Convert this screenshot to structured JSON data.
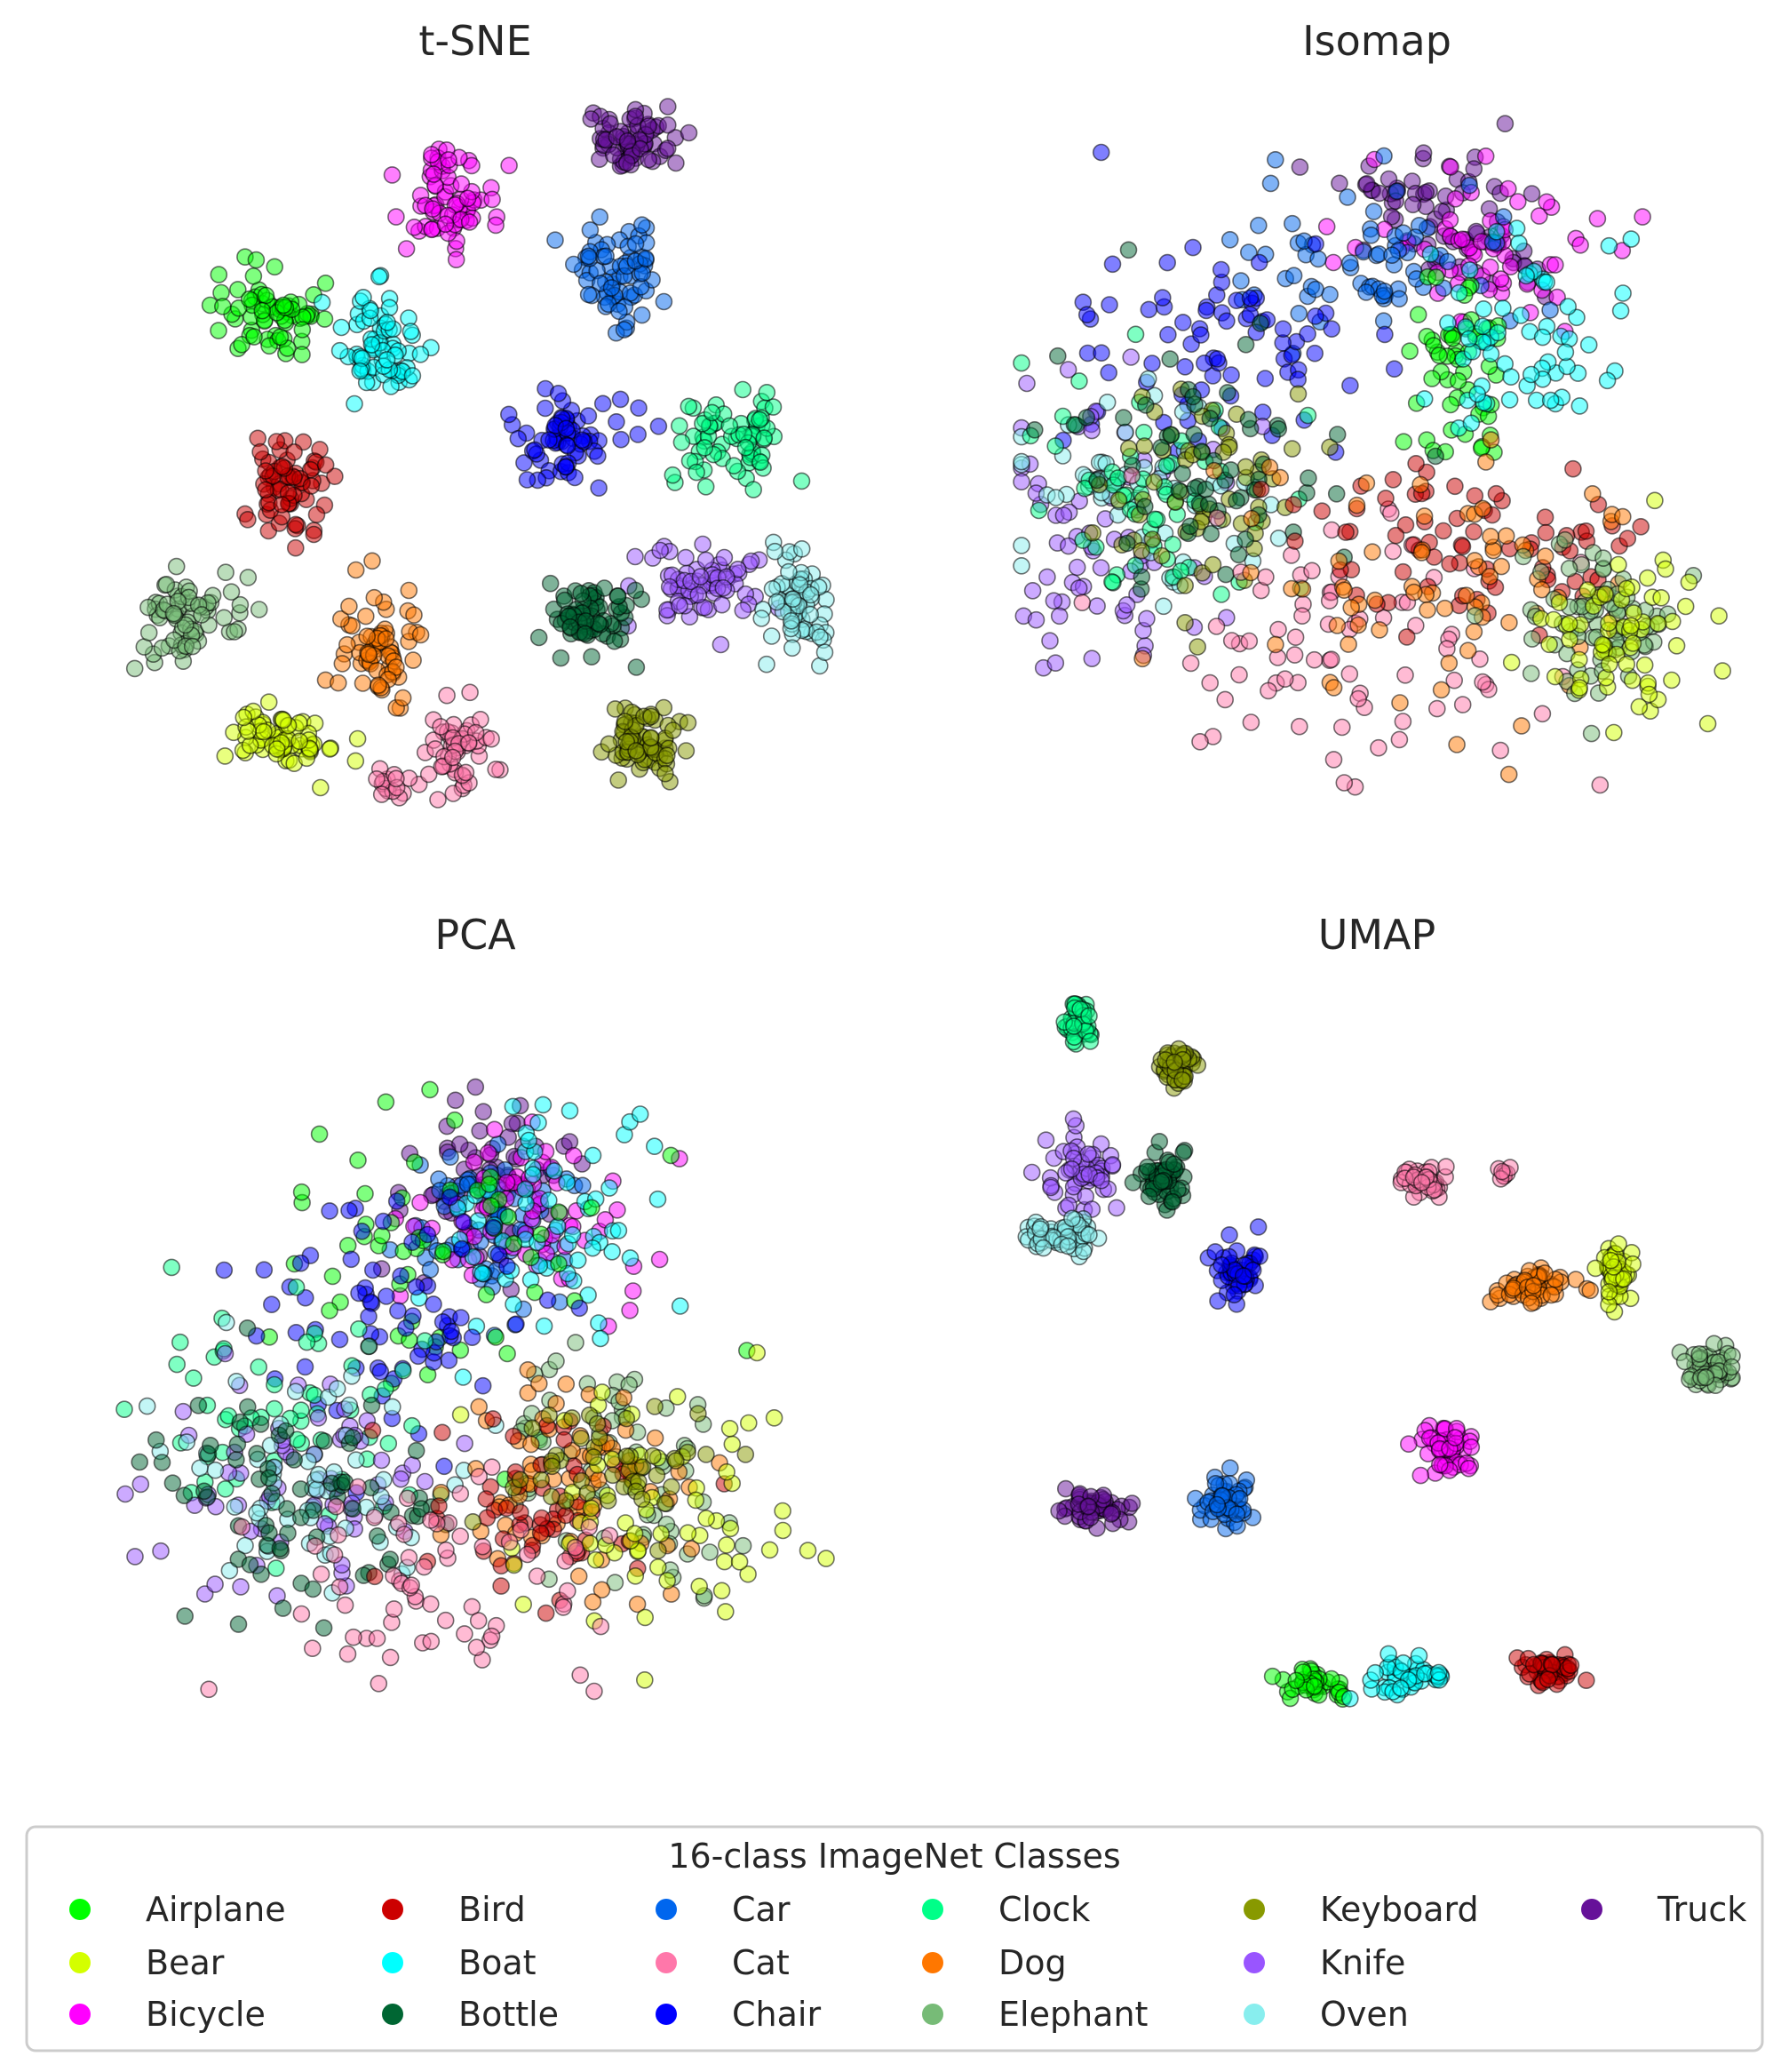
{
  "chart_data": [
    {
      "type": "scatter",
      "title": "t-SNE",
      "xlim": [
        0,
        100
      ],
      "ylim": [
        0,
        100
      ],
      "grid": false,
      "axes_visible": false,
      "clusters": [
        {
          "cls": "Truck",
          "cx": 72,
          "cy": 95,
          "sx": 3.5,
          "sy": 2.5,
          "n": 70
        },
        {
          "cls": "Bicycle",
          "cx": 46,
          "cy": 87,
          "sx": 3.0,
          "sy": 3.5,
          "n": 70
        },
        {
          "cls": "Car",
          "cx": 70,
          "cy": 76,
          "sx": 3.5,
          "sy": 3.5,
          "n": 70
        },
        {
          "cls": "Airplane",
          "cx": 21,
          "cy": 70,
          "sx": 3.5,
          "sy": 3.0,
          "n": 70
        },
        {
          "cls": "Boat",
          "cx": 36,
          "cy": 65,
          "sx": 3.0,
          "sy": 4.0,
          "n": 70
        },
        {
          "cls": "Chair",
          "cx": 63,
          "cy": 52,
          "sx": 4.5,
          "sy": 3.5,
          "n": 70
        },
        {
          "cls": "Clock",
          "cx": 87,
          "cy": 52,
          "sx": 4.0,
          "sy": 3.0,
          "n": 70
        },
        {
          "cls": "Bird",
          "cx": 23,
          "cy": 46,
          "sx": 3.0,
          "sy": 4.0,
          "n": 70
        },
        {
          "cls": "Knife",
          "cx": 82,
          "cy": 31,
          "sx": 4.5,
          "sy": 3.0,
          "n": 70
        },
        {
          "cls": "Oven",
          "cx": 96,
          "cy": 28,
          "sx": 2.5,
          "sy": 3.5,
          "n": 70
        },
        {
          "cls": "Elephant",
          "cx": 9,
          "cy": 26,
          "sx": 3.5,
          "sy": 3.0,
          "n": 70
        },
        {
          "cls": "Bottle",
          "cx": 66,
          "cy": 26,
          "sx": 3.0,
          "sy": 3.0,
          "n": 70
        },
        {
          "cls": "Dog",
          "cx": 36,
          "cy": 22,
          "sx": 3.0,
          "sy": 4.0,
          "n": 70
        },
        {
          "cls": "Bear",
          "cx": 22,
          "cy": 9,
          "sx": 3.5,
          "sy": 2.5,
          "n": 70
        },
        {
          "cls": "Cat",
          "cx": 48,
          "cy": 7,
          "sx": 2.5,
          "sy": 3.0,
          "n": 55
        },
        {
          "cls": "Cat",
          "cx": 38,
          "cy": 2,
          "sx": 1.2,
          "sy": 1.0,
          "n": 15
        },
        {
          "cls": "Keyboard",
          "cx": 74,
          "cy": 8,
          "sx": 3.0,
          "sy": 2.5,
          "n": 70
        }
      ]
    },
    {
      "type": "scatter",
      "title": "Isomap",
      "xlim": [
        0,
        100
      ],
      "ylim": [
        0,
        100
      ],
      "grid": false,
      "axes_visible": false,
      "clusters": [
        {
          "cls": "Truck",
          "cx": 58,
          "cy": 87,
          "sx": 6,
          "sy": 4,
          "n": 45
        },
        {
          "cls": "Truck",
          "cx": 65,
          "cy": 79,
          "sx": 5,
          "sy": 3,
          "n": 30
        },
        {
          "cls": "Bicycle",
          "cx": 66,
          "cy": 80,
          "sx": 10,
          "sy": 6,
          "n": 60
        },
        {
          "cls": "Car",
          "cx": 48,
          "cy": 78,
          "sx": 10,
          "sy": 6,
          "n": 70
        },
        {
          "cls": "Airplane",
          "cx": 62,
          "cy": 62,
          "sx": 3,
          "sy": 8,
          "n": 55
        },
        {
          "cls": "Boat",
          "cx": 70,
          "cy": 65,
          "sx": 8,
          "sy": 7,
          "n": 65
        },
        {
          "cls": "Chair",
          "cx": 30,
          "cy": 64,
          "sx": 12,
          "sy": 9,
          "n": 80
        },
        {
          "cls": "Knife",
          "cx": 12,
          "cy": 39,
          "sx": 9,
          "sy": 9,
          "n": 75
        },
        {
          "cls": "Oven",
          "cx": 15,
          "cy": 42,
          "sx": 9,
          "sy": 8,
          "n": 60
        },
        {
          "cls": "Clock",
          "cx": 18,
          "cy": 45,
          "sx": 9,
          "sy": 8,
          "n": 55
        },
        {
          "cls": "Keyboard",
          "cx": 25,
          "cy": 45,
          "sx": 8,
          "sy": 8,
          "n": 60
        },
        {
          "cls": "Bottle",
          "cx": 27,
          "cy": 48,
          "sx": 10,
          "sy": 9,
          "n": 60
        },
        {
          "cls": "Cat",
          "cx": 45,
          "cy": 22,
          "sx": 14,
          "sy": 10,
          "n": 80
        },
        {
          "cls": "Bird",
          "cx": 57,
          "cy": 37,
          "sx": 10,
          "sy": 8,
          "n": 55
        },
        {
          "cls": "Bird",
          "cx": 80,
          "cy": 35,
          "sx": 5,
          "sy": 4,
          "n": 25
        },
        {
          "cls": "Dog",
          "cx": 62,
          "cy": 30,
          "sx": 13,
          "sy": 10,
          "n": 75
        },
        {
          "cls": "Elephant",
          "cx": 82,
          "cy": 25,
          "sx": 6,
          "sy": 5,
          "n": 75
        },
        {
          "cls": "Bear",
          "cx": 85,
          "cy": 23,
          "sx": 6,
          "sy": 6,
          "n": 65
        }
      ]
    },
    {
      "type": "scatter",
      "title": "PCA",
      "xlim": [
        0,
        100
      ],
      "ylim": [
        0,
        100
      ],
      "grid": false,
      "axes_visible": false,
      "clusters": [
        {
          "cls": "Truck",
          "cx": 53,
          "cy": 74,
          "sx": 6,
          "sy": 6,
          "n": 70
        },
        {
          "cls": "Car",
          "cx": 52,
          "cy": 68,
          "sx": 6,
          "sy": 5,
          "n": 70
        },
        {
          "cls": "Bicycle",
          "cx": 57,
          "cy": 70,
          "sx": 8,
          "sy": 7,
          "n": 65
        },
        {
          "cls": "Boat",
          "cx": 60,
          "cy": 68,
          "sx": 9,
          "sy": 9,
          "n": 65
        },
        {
          "cls": "Airplane",
          "cx": 48,
          "cy": 66,
          "sx": 12,
          "sy": 12,
          "n": 60
        },
        {
          "cls": "Chair",
          "cx": 40,
          "cy": 55,
          "sx": 11,
          "sy": 8,
          "n": 75
        },
        {
          "cls": "Clock",
          "cx": 22,
          "cy": 42,
          "sx": 10,
          "sy": 8,
          "n": 60
        },
        {
          "cls": "Knife",
          "cx": 25,
          "cy": 33,
          "sx": 10,
          "sy": 8,
          "n": 70
        },
        {
          "cls": "Oven",
          "cx": 30,
          "cy": 32,
          "sx": 10,
          "sy": 7,
          "n": 60
        },
        {
          "cls": "Bottle",
          "cx": 25,
          "cy": 30,
          "sx": 11,
          "sy": 9,
          "n": 70
        },
        {
          "cls": "Elephant",
          "cx": 70,
          "cy": 33,
          "sx": 10,
          "sy": 8,
          "n": 70
        },
        {
          "cls": "Dog",
          "cx": 62,
          "cy": 30,
          "sx": 10,
          "sy": 7,
          "n": 70
        },
        {
          "cls": "Bird",
          "cx": 60,
          "cy": 28,
          "sx": 9,
          "sy": 7,
          "n": 60
        },
        {
          "cls": "Bear",
          "cx": 76,
          "cy": 28,
          "sx": 10,
          "sy": 9,
          "n": 65
        },
        {
          "cls": "Cat",
          "cx": 48,
          "cy": 16,
          "sx": 12,
          "sy": 8,
          "n": 70
        },
        {
          "cls": "Keyboard",
          "cx": 70,
          "cy": 35,
          "sx": 8,
          "sy": 6,
          "n": 45
        }
      ]
    },
    {
      "type": "scatter",
      "title": "UMAP",
      "xlim": [
        0,
        100
      ],
      "ylim": [
        0,
        100
      ],
      "grid": false,
      "axes_visible": false,
      "clusters": [
        {
          "cls": "Clock",
          "cx": 8,
          "cy": 97,
          "sx": 1.2,
          "sy": 1.8,
          "n": 40
        },
        {
          "cls": "Keyboard",
          "cx": 22,
          "cy": 91,
          "sx": 1.2,
          "sy": 1.5,
          "n": 45
        },
        {
          "cls": "Knife",
          "cx": 8,
          "cy": 76,
          "sx": 2.5,
          "sy": 3.0,
          "n": 55
        },
        {
          "cls": "Oven",
          "cx": 6,
          "cy": 67,
          "sx": 3.0,
          "sy": 1.2,
          "n": 55
        },
        {
          "cls": "Bottle",
          "cx": 20,
          "cy": 75,
          "sx": 1.8,
          "sy": 2.2,
          "n": 55
        },
        {
          "cls": "Chair",
          "cx": 30,
          "cy": 62,
          "sx": 2.0,
          "sy": 2.0,
          "n": 50
        },
        {
          "cls": "Cat",
          "cx": 57,
          "cy": 75,
          "sx": 1.8,
          "sy": 1.2,
          "n": 35
        },
        {
          "cls": "Cat",
          "cx": 68,
          "cy": 76,
          "sx": 0.5,
          "sy": 0.5,
          "n": 8
        },
        {
          "cls": "Dog",
          "cx": 72,
          "cy": 60,
          "sx": 3.0,
          "sy": 1.2,
          "n": 55
        },
        {
          "cls": "Bear",
          "cx": 84,
          "cy": 62,
          "sx": 1.2,
          "sy": 2.5,
          "n": 50
        },
        {
          "cls": "Elephant",
          "cx": 97,
          "cy": 48,
          "sx": 2.0,
          "sy": 1.5,
          "n": 55
        },
        {
          "cls": "Bicycle",
          "cx": 60,
          "cy": 37,
          "sx": 2.0,
          "sy": 1.5,
          "n": 50
        },
        {
          "cls": "Truck",
          "cx": 10,
          "cy": 28,
          "sx": 2.5,
          "sy": 1.0,
          "n": 55
        },
        {
          "cls": "Car",
          "cx": 29,
          "cy": 29,
          "sx": 1.8,
          "sy": 2.0,
          "n": 50
        },
        {
          "cls": "Airplane",
          "cx": 40,
          "cy": 3,
          "sx": 2.5,
          "sy": 1.0,
          "n": 45
        },
        {
          "cls": "Boat",
          "cx": 54,
          "cy": 4,
          "sx": 3.5,
          "sy": 1.5,
          "n": 45
        },
        {
          "cls": "Bird",
          "cx": 74,
          "cy": 5,
          "sx": 2.0,
          "sy": 1.0,
          "n": 50
        }
      ]
    }
  ],
  "legend": {
    "title": "16-class ImageNet Classes",
    "placement": "bottom-center",
    "items": [
      {
        "label": "Airplane",
        "color": "#00ff00"
      },
      {
        "label": "Bear",
        "color": "#d4ff00"
      },
      {
        "label": "Bicycle",
        "color": "#ff00ff"
      },
      {
        "label": "Bird",
        "color": "#cc0000"
      },
      {
        "label": "Boat",
        "color": "#00ffff"
      },
      {
        "label": "Bottle",
        "color": "#006633"
      },
      {
        "label": "Car",
        "color": "#0066ee"
      },
      {
        "label": "Cat",
        "color": "#ff77aa"
      },
      {
        "label": "Chair",
        "color": "#0000ff"
      },
      {
        "label": "Clock",
        "color": "#00ff88"
      },
      {
        "label": "Dog",
        "color": "#ff7700"
      },
      {
        "label": "Elephant",
        "color": "#77bb77"
      },
      {
        "label": "Keyboard",
        "color": "#889900"
      },
      {
        "label": "Knife",
        "color": "#9955ff"
      },
      {
        "label": "Oven",
        "color": "#88eeee"
      },
      {
        "label": "Truck",
        "color": "#661199"
      }
    ]
  }
}
